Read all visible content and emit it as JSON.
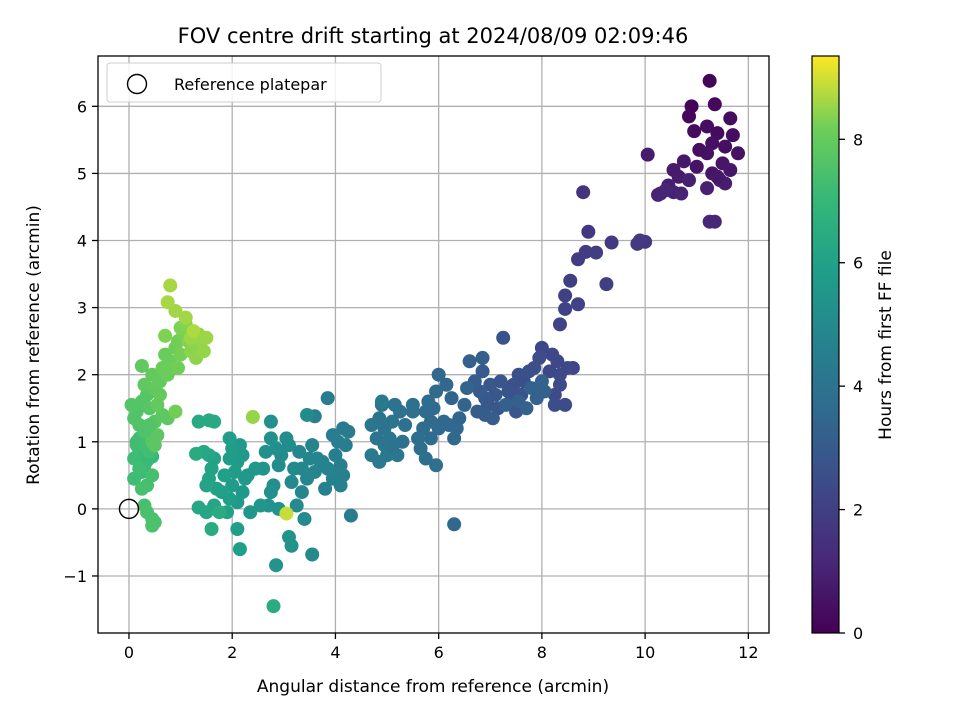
{
  "chart_data": {
    "type": "scatter",
    "title": "FOV centre drift starting at 2024/08/09 02:09:46",
    "xlabel": "Angular distance from reference (arcmin)",
    "ylabel": "Rotation from reference (arcmin)",
    "xlim": [
      -0.6,
      12.4
    ],
    "ylim": [
      -1.85,
      6.75
    ],
    "x_ticks": [
      0,
      2,
      4,
      6,
      8,
      10,
      12
    ],
    "y_ticks": [
      -1,
      0,
      1,
      2,
      3,
      4,
      5,
      6
    ],
    "x_tick_labels": [
      "0",
      "2",
      "4",
      "6",
      "8",
      "10",
      "12"
    ],
    "y_tick_labels": [
      "−1",
      "0",
      "1",
      "2",
      "3",
      "4",
      "5",
      "6"
    ],
    "grid": true,
    "legend": {
      "placement": "top-left",
      "entries": [
        {
          "label": "Reference platepar",
          "marker": "open-circle"
        }
      ]
    },
    "reference_point": {
      "x": 0,
      "y": 0
    },
    "colorbar": {
      "label": "Hours from first FF file",
      "colormap": "viridis",
      "range": [
        0,
        9.35
      ],
      "ticks": [
        0,
        2,
        4,
        6,
        8
      ],
      "tick_labels": [
        "0",
        "2",
        "4",
        "6",
        "8"
      ]
    },
    "points": [
      [
        11.25,
        6.38,
        0.1
      ],
      [
        10.9,
        6.0,
        0.15
      ],
      [
        11.35,
        6.03,
        0.2
      ],
      [
        10.85,
        5.85,
        0.25
      ],
      [
        10.95,
        5.63,
        0.3
      ],
      [
        11.4,
        5.6,
        0.3
      ],
      [
        11.65,
        5.82,
        0.35
      ],
      [
        11.7,
        5.57,
        0.35
      ],
      [
        11.2,
        5.7,
        0.4
      ],
      [
        11.3,
        5.45,
        0.45
      ],
      [
        11.55,
        5.4,
        0.45
      ],
      [
        11.8,
        5.3,
        0.5
      ],
      [
        11.2,
        5.3,
        0.5
      ],
      [
        11.0,
        5.1,
        0.55
      ],
      [
        11.3,
        5.0,
        0.6
      ],
      [
        11.5,
        5.15,
        0.6
      ],
      [
        11.65,
        5.05,
        0.65
      ],
      [
        10.75,
        5.18,
        0.7
      ],
      [
        10.55,
        5.05,
        0.75
      ],
      [
        10.65,
        4.95,
        0.8
      ],
      [
        11.45,
        4.9,
        0.85
      ],
      [
        11.55,
        4.85,
        0.85
      ],
      [
        10.45,
        4.82,
        0.9
      ],
      [
        10.3,
        4.7,
        0.95
      ],
      [
        10.55,
        4.72,
        1.0
      ],
      [
        11.2,
        4.78,
        1.0
      ],
      [
        10.25,
        4.68,
        1.05
      ],
      [
        10.7,
        4.7,
        1.05
      ],
      [
        10.4,
        4.75,
        1.1
      ],
      [
        11.25,
        4.28,
        1.15
      ],
      [
        11.35,
        4.28,
        1.15
      ],
      [
        10.05,
        5.28,
        0.8
      ],
      [
        10.85,
        4.9,
        0.95
      ],
      [
        11.05,
        5.35,
        0.4
      ],
      [
        11.4,
        4.95,
        0.7
      ],
      [
        8.8,
        4.72,
        1.6
      ],
      [
        8.9,
        4.13,
        1.7
      ],
      [
        10.0,
        3.98,
        1.75
      ],
      [
        9.9,
        4.0,
        1.8
      ],
      [
        9.85,
        3.95,
        1.8
      ],
      [
        9.35,
        3.97,
        1.85
      ],
      [
        8.7,
        3.72,
        1.9
      ],
      [
        8.85,
        3.83,
        1.9
      ],
      [
        9.05,
        3.82,
        1.95
      ],
      [
        9.25,
        3.35,
        2.0
      ],
      [
        8.55,
        3.4,
        2.0
      ],
      [
        8.45,
        3.18,
        2.05
      ],
      [
        8.45,
        2.98,
        2.1
      ],
      [
        8.35,
        2.75,
        2.15
      ],
      [
        8.7,
        3.05,
        2.1
      ],
      [
        8.6,
        2.1,
        2.2
      ],
      [
        8.2,
        2.3,
        2.25
      ],
      [
        8.0,
        2.4,
        2.3
      ],
      [
        8.3,
        2.2,
        2.25
      ],
      [
        8.15,
        2.05,
        2.3
      ],
      [
        8.35,
        2.0,
        2.35
      ],
      [
        8.5,
        2.1,
        2.35
      ],
      [
        8.35,
        1.85,
        2.4
      ],
      [
        8.25,
        1.7,
        2.45
      ],
      [
        8.45,
        1.55,
        2.45
      ],
      [
        8.25,
        1.55,
        2.5
      ],
      [
        7.95,
        2.25,
        2.5
      ],
      [
        7.85,
        2.1,
        2.55
      ],
      [
        7.75,
        2.05,
        2.55
      ],
      [
        7.65,
        1.9,
        2.6
      ],
      [
        7.55,
        2.0,
        2.6
      ],
      [
        7.45,
        1.85,
        2.65
      ],
      [
        7.6,
        1.7,
        2.7
      ],
      [
        7.4,
        1.6,
        2.7
      ],
      [
        7.25,
        2.55,
        2.75
      ],
      [
        7.35,
        1.75,
        2.75
      ],
      [
        7.5,
        1.45,
        2.8
      ],
      [
        7.2,
        1.9,
        2.8
      ],
      [
        7.1,
        1.7,
        2.85
      ],
      [
        7.15,
        1.5,
        2.85
      ],
      [
        7.0,
        1.85,
        2.9
      ],
      [
        6.95,
        1.55,
        2.9
      ],
      [
        6.9,
        1.65,
        2.95
      ],
      [
        6.85,
        2.05,
        3.0
      ],
      [
        6.8,
        1.75,
        3.0
      ],
      [
        6.75,
        1.45,
        3.05
      ],
      [
        6.9,
        1.4,
        3.05
      ],
      [
        7.05,
        1.35,
        3.1
      ],
      [
        6.7,
        1.9,
        3.1
      ],
      [
        6.6,
        2.2,
        3.15
      ],
      [
        6.85,
        2.25,
        3.15
      ],
      [
        7.3,
        1.55,
        3.2
      ],
      [
        7.55,
        1.6,
        3.2
      ],
      [
        7.7,
        1.5,
        3.25
      ],
      [
        7.9,
        1.65,
        3.25
      ],
      [
        8.05,
        1.75,
        3.3
      ],
      [
        7.8,
        1.8,
        3.3
      ],
      [
        8.0,
        1.9,
        3.3
      ],
      [
        6.55,
        1.8,
        3.35
      ],
      [
        6.5,
        1.55,
        3.35
      ],
      [
        6.4,
        1.35,
        3.4
      ],
      [
        6.25,
        1.65,
        3.4
      ],
      [
        6.15,
        1.85,
        3.45
      ],
      [
        6.0,
        2.0,
        3.45
      ],
      [
        6.2,
        1.25,
        3.5
      ],
      [
        6.35,
        1.2,
        3.5
      ],
      [
        6.3,
        1.05,
        3.55
      ],
      [
        6.1,
        1.3,
        3.55
      ],
      [
        6.0,
        1.2,
        3.6
      ],
      [
        5.9,
        1.5,
        3.6
      ],
      [
        5.85,
        1.3,
        3.65
      ],
      [
        5.95,
        1.75,
        3.65
      ],
      [
        5.8,
        1.6,
        3.7
      ],
      [
        5.75,
        1.45,
        3.7
      ],
      [
        5.85,
        1.05,
        3.75
      ],
      [
        5.7,
        1.2,
        3.75
      ],
      [
        5.6,
        1.05,
        3.8
      ],
      [
        5.65,
        0.9,
        3.8
      ],
      [
        5.5,
        1.55,
        3.85
      ],
      [
        5.5,
        1.45,
        3.85
      ],
      [
        5.35,
        1.25,
        3.9
      ],
      [
        5.3,
        1.0,
        3.9
      ],
      [
        5.25,
        1.45,
        3.95
      ],
      [
        5.15,
        1.55,
        3.95
      ],
      [
        5.1,
        1.3,
        4.0
      ],
      [
        4.9,
        1.55,
        4.0
      ],
      [
        4.85,
        1.35,
        4.05
      ],
      [
        4.95,
        1.2,
        4.05
      ],
      [
        5.05,
        1.05,
        4.1
      ],
      [
        4.95,
        0.95,
        4.1
      ],
      [
        4.8,
        1.05,
        4.15
      ],
      [
        4.7,
        1.25,
        4.15
      ],
      [
        5.0,
        0.8,
        4.2
      ],
      [
        5.2,
        0.8,
        4.2
      ],
      [
        4.85,
        0.7,
        4.25
      ],
      [
        4.7,
        0.8,
        4.25
      ],
      [
        4.9,
        1.6,
        4.3
      ],
      [
        6.3,
        -0.23,
        3.5
      ],
      [
        5.75,
        0.75,
        3.8
      ],
      [
        5.95,
        0.65,
        3.85
      ],
      [
        5.1,
        0.92,
        4.0
      ],
      [
        4.25,
        1.15,
        4.35
      ],
      [
        4.15,
        1.2,
        4.4
      ],
      [
        4.05,
        1.0,
        4.45
      ],
      [
        4.2,
        0.95,
        4.45
      ],
      [
        3.95,
        1.1,
        4.5
      ],
      [
        4.0,
        0.8,
        4.5
      ],
      [
        4.1,
        0.65,
        4.55
      ],
      [
        4.0,
        0.55,
        4.55
      ],
      [
        4.15,
        0.5,
        4.6
      ],
      [
        4.1,
        0.35,
        4.6
      ],
      [
        3.95,
        0.45,
        4.65
      ],
      [
        3.8,
        0.3,
        4.65
      ],
      [
        3.85,
        0.6,
        4.7
      ],
      [
        3.75,
        0.7,
        4.7
      ],
      [
        3.65,
        0.75,
        4.75
      ],
      [
        3.55,
        0.95,
        4.75
      ],
      [
        3.5,
        0.75,
        4.8
      ],
      [
        3.6,
        0.55,
        4.8
      ],
      [
        3.45,
        0.45,
        4.85
      ],
      [
        3.35,
        0.6,
        4.85
      ],
      [
        3.3,
        0.85,
        4.9
      ],
      [
        3.35,
        0.25,
        4.9
      ],
      [
        3.2,
        0.6,
        4.95
      ],
      [
        3.15,
        0.4,
        4.95
      ],
      [
        3.25,
        0.05,
        5.0
      ],
      [
        3.4,
        -0.15,
        5.0
      ],
      [
        3.55,
        -0.68,
        5.05
      ],
      [
        3.85,
        1.65,
        4.4
      ],
      [
        3.6,
        1.38,
        4.6
      ],
      [
        3.45,
        1.4,
        5.05
      ],
      [
        4.3,
        -0.1,
        4.35
      ],
      [
        3.1,
        0.95,
        5.1
      ],
      [
        3.05,
        1.05,
        5.1
      ],
      [
        2.95,
        0.8,
        5.15
      ],
      [
        2.9,
        0.65,
        5.15
      ],
      [
        2.85,
        0.9,
        5.2
      ],
      [
        2.8,
        0.35,
        5.2
      ],
      [
        2.75,
        0.25,
        5.25
      ],
      [
        2.75,
        1.05,
        5.25
      ],
      [
        2.75,
        1.3,
        5.3
      ],
      [
        2.65,
        0.85,
        5.3
      ],
      [
        2.7,
        0.05,
        5.35
      ],
      [
        2.9,
        0.0,
        5.35
      ],
      [
        3.1,
        -0.42,
        5.4
      ],
      [
        3.15,
        -0.55,
        5.4
      ],
      [
        2.85,
        -0.84,
        5.45
      ],
      [
        2.6,
        0.6,
        5.45
      ],
      [
        2.55,
        0.05,
        5.5
      ],
      [
        2.45,
        0.6,
        5.5
      ],
      [
        2.35,
        -0.05,
        5.55
      ],
      [
        2.3,
        0.5,
        5.55
      ],
      [
        2.25,
        0.45,
        5.6
      ],
      [
        2.2,
        0.25,
        5.6
      ],
      [
        2.2,
        0.8,
        5.65
      ],
      [
        2.15,
        0.95,
        5.65
      ],
      [
        2.1,
        0.7,
        5.7
      ],
      [
        2.1,
        0.1,
        5.7
      ],
      [
        2.05,
        0.55,
        5.75
      ],
      [
        2.0,
        0.35,
        5.75
      ],
      [
        1.95,
        0.75,
        5.8
      ],
      [
        2.0,
        0.9,
        5.8
      ],
      [
        1.95,
        1.05,
        5.85
      ],
      [
        1.95,
        0.15,
        5.85
      ],
      [
        2.1,
        -0.3,
        5.9
      ],
      [
        2.15,
        -0.6,
        5.9
      ],
      [
        1.85,
        0.5,
        5.95
      ],
      [
        1.8,
        0.25,
        5.95
      ],
      [
        1.9,
        -0.05,
        6.0
      ],
      [
        1.7,
        0.3,
        6.0
      ],
      [
        1.65,
        0.75,
        6.05
      ],
      [
        1.6,
        0.6,
        6.05
      ],
      [
        1.55,
        0.45,
        6.1
      ],
      [
        1.5,
        0.35,
        6.1
      ],
      [
        1.55,
        0.8,
        6.15
      ],
      [
        1.65,
        0.05,
        6.15
      ],
      [
        1.5,
        -0.05,
        6.2
      ],
      [
        1.35,
        0.02,
        6.2
      ],
      [
        1.45,
        0.85,
        6.25
      ],
      [
        1.65,
        1.3,
        6.3
      ],
      [
        1.55,
        1.32,
        6.35
      ],
      [
        1.35,
        1.3,
        6.35
      ],
      [
        1.6,
        -0.3,
        6.4
      ],
      [
        2.8,
        -1.45,
        6.5
      ],
      [
        1.3,
        0.82,
        6.4
      ],
      [
        1.75,
        -0.05,
        6.45
      ],
      [
        0.45,
        0.78,
        7.0
      ],
      [
        0.35,
        0.72,
        7.05
      ],
      [
        0.3,
        0.65,
        7.1
      ],
      [
        0.25,
        0.55,
        7.1
      ],
      [
        0.2,
        0.85,
        7.15
      ],
      [
        0.15,
        1.0,
        7.15
      ],
      [
        0.1,
        0.75,
        7.2
      ],
      [
        0.1,
        0.45,
        7.2
      ],
      [
        0.15,
        0.95,
        7.25
      ],
      [
        0.2,
        1.05,
        7.25
      ],
      [
        0.3,
        0.95,
        7.3
      ],
      [
        0.4,
        0.85,
        7.3
      ],
      [
        0.45,
        0.5,
        7.35
      ],
      [
        0.35,
        0.35,
        7.35
      ],
      [
        0.25,
        0.3,
        7.4
      ],
      [
        0.3,
        0.05,
        7.4
      ],
      [
        0.35,
        -0.05,
        7.45
      ],
      [
        0.45,
        -0.15,
        7.45
      ],
      [
        0.5,
        -0.2,
        7.5
      ],
      [
        0.45,
        -0.25,
        7.5
      ],
      [
        0.3,
        1.15,
        7.55
      ],
      [
        0.2,
        1.25,
        7.55
      ],
      [
        0.1,
        1.35,
        7.6
      ],
      [
        0.15,
        1.45,
        7.6
      ],
      [
        0.05,
        1.55,
        7.65
      ],
      [
        0.25,
        1.6,
        7.65
      ],
      [
        0.35,
        1.7,
        7.7
      ],
      [
        0.4,
        1.5,
        7.7
      ],
      [
        0.5,
        1.3,
        7.75
      ],
      [
        0.45,
        1.0,
        7.75
      ],
      [
        0.5,
        0.95,
        7.8
      ],
      [
        0.55,
        1.1,
        7.8
      ],
      [
        0.65,
        1.4,
        7.85
      ],
      [
        0.75,
        1.35,
        7.85
      ],
      [
        0.3,
        1.85,
        7.9
      ],
      [
        0.25,
        2.13,
        7.9
      ],
      [
        0.45,
        2.0,
        7.95
      ],
      [
        0.5,
        1.8,
        7.95
      ],
      [
        0.55,
        1.55,
        8.0
      ],
      [
        0.6,
        1.9,
        8.0
      ],
      [
        0.65,
        2.1,
        8.05
      ],
      [
        0.7,
        2.3,
        8.05
      ],
      [
        0.75,
        2.0,
        8.1
      ],
      [
        0.8,
        2.2,
        8.1
      ],
      [
        0.85,
        2.1,
        8.15
      ],
      [
        0.9,
        2.4,
        8.15
      ],
      [
        0.95,
        2.5,
        8.2
      ],
      [
        0.9,
        1.45,
        8.2
      ],
      [
        1.0,
        2.3,
        8.25
      ],
      [
        1.05,
        2.6,
        8.25
      ],
      [
        0.7,
        2.58,
        8.3
      ],
      [
        1.0,
        2.7,
        8.3
      ],
      [
        1.1,
        2.75,
        8.35
      ],
      [
        1.15,
        2.5,
        8.35
      ],
      [
        1.2,
        2.35,
        8.4
      ],
      [
        1.25,
        2.45,
        8.4
      ],
      [
        1.3,
        2.25,
        8.45
      ],
      [
        1.35,
        2.6,
        8.45
      ],
      [
        1.4,
        2.5,
        8.5
      ],
      [
        1.45,
        2.35,
        8.5
      ],
      [
        1.5,
        2.55,
        8.55
      ],
      [
        1.2,
        2.55,
        8.55
      ],
      [
        1.1,
        2.85,
        8.6
      ],
      [
        0.9,
        2.95,
        8.6
      ],
      [
        0.75,
        3.08,
        8.65
      ],
      [
        0.8,
        3.33,
        8.65
      ],
      [
        1.25,
        2.65,
        8.7
      ],
      [
        2.4,
        1.37,
        8.5
      ],
      [
        3.05,
        -0.07,
        8.9
      ],
      [
        0.95,
        2.1,
        8.2
      ],
      [
        0.6,
        1.7,
        7.95
      ],
      [
        0.4,
        1.25,
        7.6
      ],
      [
        0.2,
        0.6,
        7.25
      ],
      [
        0.7,
        2.05,
        8.1
      ]
    ]
  }
}
